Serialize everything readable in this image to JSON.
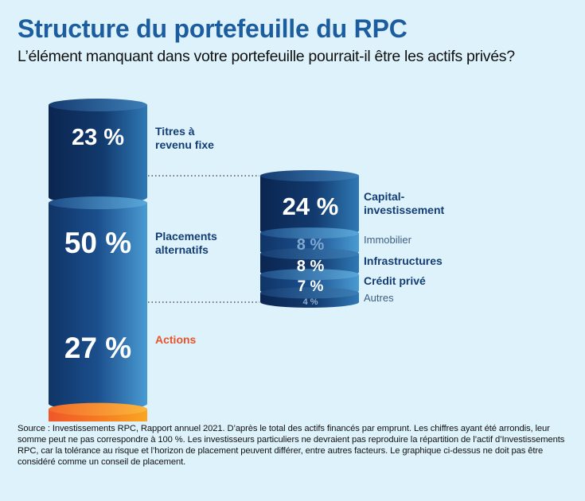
{
  "header": {
    "title": "Structure du portefeuille du RPC",
    "subtitle": "L’élément manquant dans votre portefeuille pourrait-il être les actifs privés?"
  },
  "footer": {
    "source": "Source : Investissements RPC, Rapport annuel 2021. D’après le total des actifs financés par emprunt. Les chiffres ayant été arrondis, leur somme peut ne pas correspondre à 100 %. Les investisseurs particuliers ne devraient pas reproduire la répartition de l’actif d’Investissements RPC, car la tolérance au risque et l’horizon de placement peuvent différer, entre autres facteurs. Le graphique ci-dessus ne doit pas être considéré comme un conseil de placement."
  },
  "colors": {
    "navy": "#0f2f5c",
    "blue": "#1e4f8c",
    "orange": "#f47a20",
    "red_label": "#e8542a",
    "background": "#ddf2fb"
  },
  "chart_data": [
    {
      "type": "stacked-cylinder",
      "categories": [
        "Titres à revenu fixe",
        "Placements alternatifs",
        "Actions"
      ],
      "values": [
        23,
        50,
        27
      ],
      "value_labels": [
        "23 %",
        "50 %",
        "27 %"
      ],
      "colors": [
        "#0f2f5c",
        "#1e4f8c",
        "#f47a20"
      ],
      "legend": "right of each segment"
    },
    {
      "type": "stacked-cylinder",
      "parent": "Placements alternatifs",
      "categories": [
        "Capital-investissement",
        "Immobilier",
        "Infrastructures",
        "Crédit privé",
        "Autres"
      ],
      "values": [
        24,
        8,
        8,
        7,
        4
      ],
      "value_labels": [
        "24 %",
        "8 %",
        "8 %",
        "7 %",
        "4 %"
      ],
      "colors": [
        "#0f2f5c",
        "#1e4f8c",
        "#0f2f5c",
        "#1e4f8c",
        "#0f2f5c"
      ],
      "legend": "right of each segment"
    }
  ]
}
